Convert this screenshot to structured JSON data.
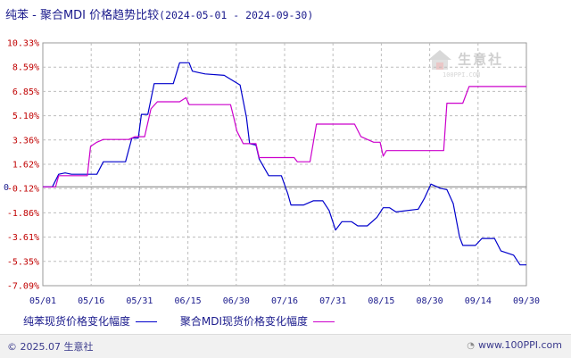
{
  "title": {
    "main": "纯苯 - 聚合MDI 价格趋势比较",
    "range": "(2024-05-01 - 2024-09-30)"
  },
  "watermark": {
    "text": "生意社",
    "url": "100PPI.COM",
    "icon": "house-logo-icon"
  },
  "footer": {
    "copyright": "© 2025.07 生意社",
    "site": "www.100PPI.com",
    "icon": "globe-icon"
  },
  "colors": {
    "series1": "#0000cc",
    "series2": "#cc00cc",
    "ytick": "#c00000",
    "xtick": "#1a1a8c",
    "grid": "#bdbdbd"
  },
  "chart_data": {
    "type": "line",
    "ylim": [
      -7.09,
      10.33
    ],
    "yticks": [
      "10.33%",
      "8.59%",
      "6.85%",
      "5.10%",
      "3.36%",
      "1.62%",
      "-0.12%",
      "-1.86%",
      "-3.61%",
      "-5.35%",
      "-7.09%"
    ],
    "yzero_label": "0",
    "xticks": [
      "05/01",
      "05/16",
      "05/31",
      "06/15",
      "06/30",
      "07/16",
      "07/31",
      "08/15",
      "08/30",
      "09/14",
      "09/30"
    ],
    "grid": true,
    "legend_position": "bottom",
    "series": [
      {
        "name": "纯苯现货价格变化幅度",
        "points": [
          [
            "2024-05-01",
            0.0
          ],
          [
            "2024-05-04",
            0.0
          ],
          [
            "2024-05-06",
            0.9
          ],
          [
            "2024-05-08",
            1.0
          ],
          [
            "2024-05-10",
            0.9
          ],
          [
            "2024-05-14",
            0.9
          ],
          [
            "2024-05-18",
            0.9
          ],
          [
            "2024-05-20",
            1.8
          ],
          [
            "2024-05-27",
            1.8
          ],
          [
            "2024-05-29",
            3.5
          ],
          [
            "2024-05-31",
            3.5
          ],
          [
            "2024-06-01",
            5.2
          ],
          [
            "2024-06-03",
            5.2
          ],
          [
            "2024-06-05",
            7.4
          ],
          [
            "2024-06-11",
            7.4
          ],
          [
            "2024-06-13",
            8.9
          ],
          [
            "2024-06-16",
            8.9
          ],
          [
            "2024-06-17",
            8.3
          ],
          [
            "2024-06-19",
            8.2
          ],
          [
            "2024-06-21",
            8.1
          ],
          [
            "2024-06-27",
            8.0
          ],
          [
            "2024-07-02",
            7.3
          ],
          [
            "2024-07-04",
            5.0
          ],
          [
            "2024-07-05",
            3.1
          ],
          [
            "2024-07-07",
            3.0
          ],
          [
            "2024-07-08",
            2.0
          ],
          [
            "2024-07-11",
            0.8
          ],
          [
            "2024-07-15",
            0.8
          ],
          [
            "2024-07-17",
            -0.5
          ],
          [
            "2024-07-18",
            -1.3
          ],
          [
            "2024-07-22",
            -1.3
          ],
          [
            "2024-07-25",
            -1.0
          ],
          [
            "2024-07-28",
            -1.0
          ],
          [
            "2024-07-30",
            -1.7
          ],
          [
            "2024-08-01",
            -3.1
          ],
          [
            "2024-08-03",
            -2.5
          ],
          [
            "2024-08-06",
            -2.5
          ],
          [
            "2024-08-08",
            -2.8
          ],
          [
            "2024-08-11",
            -2.8
          ],
          [
            "2024-08-14",
            -2.2
          ],
          [
            "2024-08-16",
            -1.5
          ],
          [
            "2024-08-18",
            -1.5
          ],
          [
            "2024-08-20",
            -1.8
          ],
          [
            "2024-08-27",
            -1.6
          ],
          [
            "2024-08-29",
            -0.8
          ],
          [
            "2024-08-31",
            0.2
          ],
          [
            "2024-09-03",
            -0.1
          ],
          [
            "2024-09-05",
            -0.2
          ],
          [
            "2024-09-07",
            -1.2
          ],
          [
            "2024-09-09",
            -3.6
          ],
          [
            "2024-09-10",
            -4.2
          ],
          [
            "2024-09-14",
            -4.2
          ],
          [
            "2024-09-16",
            -3.7
          ],
          [
            "2024-09-20",
            -3.7
          ],
          [
            "2024-09-22",
            -4.6
          ],
          [
            "2024-09-26",
            -4.9
          ],
          [
            "2024-09-28",
            -5.6
          ],
          [
            "2024-09-30",
            -5.6
          ]
        ]
      },
      {
        "name": "聚合MDI现货价格变化幅度",
        "points": [
          [
            "2024-05-01",
            0.0
          ],
          [
            "2024-05-05",
            0.0
          ],
          [
            "2024-05-06",
            0.8
          ],
          [
            "2024-05-15",
            0.8
          ],
          [
            "2024-05-16",
            2.9
          ],
          [
            "2024-05-18",
            3.2
          ],
          [
            "2024-05-20",
            3.4
          ],
          [
            "2024-05-28",
            3.4
          ],
          [
            "2024-05-30",
            3.6
          ],
          [
            "2024-06-02",
            3.6
          ],
          [
            "2024-06-04",
            5.6
          ],
          [
            "2024-06-06",
            6.1
          ],
          [
            "2024-06-13",
            6.1
          ],
          [
            "2024-06-15",
            6.4
          ],
          [
            "2024-06-16",
            5.9
          ],
          [
            "2024-06-29",
            5.9
          ],
          [
            "2024-06-30",
            5.0
          ],
          [
            "2024-07-01",
            4.0
          ],
          [
            "2024-07-03",
            3.1
          ],
          [
            "2024-07-07",
            3.1
          ],
          [
            "2024-07-08",
            2.1
          ],
          [
            "2024-07-19",
            2.1
          ],
          [
            "2024-07-20",
            1.8
          ],
          [
            "2024-07-24",
            1.8
          ],
          [
            "2024-07-26",
            4.5
          ],
          [
            "2024-08-07",
            4.5
          ],
          [
            "2024-08-09",
            3.6
          ],
          [
            "2024-08-13",
            3.2
          ],
          [
            "2024-08-15",
            3.2
          ],
          [
            "2024-08-16",
            2.2
          ],
          [
            "2024-08-17",
            2.6
          ],
          [
            "2024-08-25",
            2.6
          ],
          [
            "2024-09-04",
            2.6
          ],
          [
            "2024-09-05",
            6.0
          ],
          [
            "2024-09-10",
            6.0
          ],
          [
            "2024-09-12",
            7.2
          ],
          [
            "2024-09-30",
            7.2
          ]
        ]
      }
    ]
  }
}
